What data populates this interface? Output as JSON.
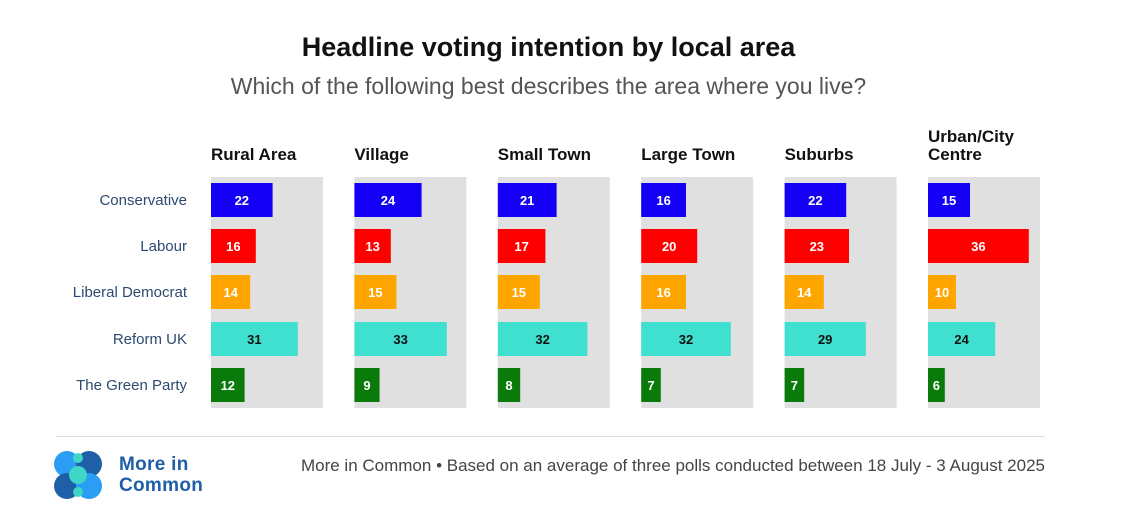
{
  "chart_data": {
    "type": "bar",
    "title": "Headline voting intention by local area",
    "subtitle": "Which of the following best describes the area where you live?",
    "parties": [
      "Conservative",
      "Labour",
      "Liberal Democrat",
      "Reform UK",
      "The Green Party"
    ],
    "colors": [
      "#1400f5",
      "#ff0000",
      "#ffa500",
      "#40e0d0",
      "#0a7a0a"
    ],
    "panels": [
      {
        "name": "Rural Area",
        "values": [
          22,
          16,
          14,
          31,
          12
        ]
      },
      {
        "name": "Village",
        "values": [
          24,
          13,
          15,
          33,
          9
        ]
      },
      {
        "name": "Small Town",
        "values": [
          21,
          17,
          15,
          32,
          8
        ]
      },
      {
        "name": "Large Town",
        "values": [
          16,
          20,
          16,
          32,
          7
        ]
      },
      {
        "name": "Suburbs",
        "values": [
          22,
          23,
          14,
          29,
          7
        ]
      },
      {
        "name": "Urban/City Centre",
        "values": [
          15,
          36,
          10,
          24,
          6
        ]
      }
    ],
    "xlim": [
      0,
      40
    ],
    "background_color": "#e0e0e0"
  },
  "footer": {
    "logo_line1": "More in",
    "logo_line2": "Common",
    "source": "More in Common • Based on an average of three polls conducted between 18 July - 3 August 2025"
  }
}
